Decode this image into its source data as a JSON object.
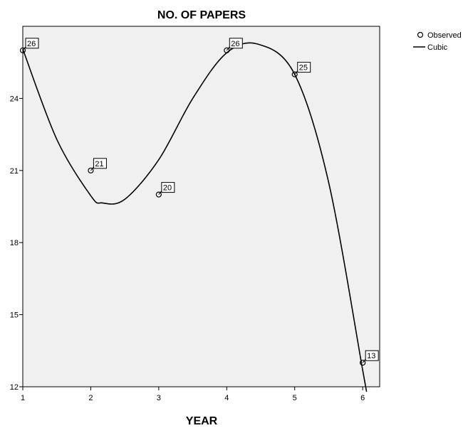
{
  "chart_data": {
    "type": "scatter",
    "title": "NO. OF PAPERS",
    "xlabel": "YEAR",
    "ylabel": "",
    "xlim": [
      1,
      6.25
    ],
    "ylim": [
      12,
      27
    ],
    "x_ticks": [
      "1",
      "2",
      "3",
      "4",
      "5",
      "6"
    ],
    "y_ticks": [
      "12",
      "15",
      "18",
      "21",
      "24"
    ],
    "grid": false,
    "legend_position": "top-right",
    "series": [
      {
        "name": "Observed",
        "kind": "points",
        "x": [
          1,
          2,
          3,
          4,
          5,
          6
        ],
        "y": [
          26,
          21,
          20,
          26,
          25,
          13
        ],
        "labels": [
          "26",
          "21",
          "20",
          "26",
          "25",
          "13"
        ]
      },
      {
        "name": "Cubic",
        "kind": "line",
        "x": [
          1,
          1.5,
          2,
          2.17,
          2.5,
          3,
          3.5,
          4,
          4.47,
          5,
          5.5,
          6,
          6.05
        ],
        "y": [
          26.05,
          22.3,
          19.95,
          19.65,
          19.8,
          21.45,
          24.0,
          25.9,
          26.25,
          25.0,
          20.5,
          12.7,
          11.9
        ]
      }
    ],
    "colors": {
      "plot_background": "#f0f0f0",
      "line": "#000000",
      "marker": "#000000"
    }
  }
}
